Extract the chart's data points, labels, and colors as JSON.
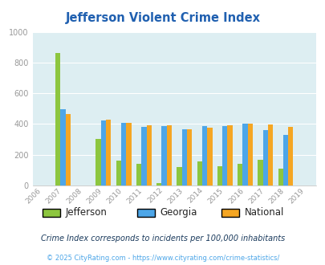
{
  "title": "Jefferson Violent Crime Index",
  "all_years": [
    2006,
    2007,
    2008,
    2009,
    2010,
    2011,
    2012,
    2013,
    2014,
    2015,
    2016,
    2017,
    2018,
    2019
  ],
  "data_years": [
    2007,
    2009,
    2010,
    2011,
    2012,
    2013,
    2014,
    2015,
    2016,
    2017,
    2018
  ],
  "jefferson": [
    860,
    305,
    160,
    140,
    15,
    120,
    158,
    128,
    140,
    165,
    110
  ],
  "georgia": [
    495,
    425,
    405,
    380,
    385,
    365,
    385,
    385,
    402,
    362,
    330
  ],
  "national": [
    465,
    430,
    408,
    390,
    390,
    368,
    375,
    390,
    402,
    395,
    380
  ],
  "jefferson_color": "#8dc63f",
  "georgia_color": "#4da6e8",
  "national_color": "#f5a623",
  "plot_bg": "#ddeef2",
  "fig_bg": "#ffffff",
  "ylim": [
    0,
    1000
  ],
  "yticks": [
    0,
    200,
    400,
    600,
    800,
    1000
  ],
  "legend_labels": [
    "Jefferson",
    "Georgia",
    "National"
  ],
  "footnote1": "Crime Index corresponds to incidents per 100,000 inhabitants",
  "footnote2": "© 2025 CityRating.com - https://www.cityrating.com/crime-statistics/",
  "title_color": "#2060b0",
  "footnote1_color": "#1a3a5c",
  "footnote2_color": "#4da6e8",
  "grid_color": "#ffffff",
  "tick_color": "#999999"
}
